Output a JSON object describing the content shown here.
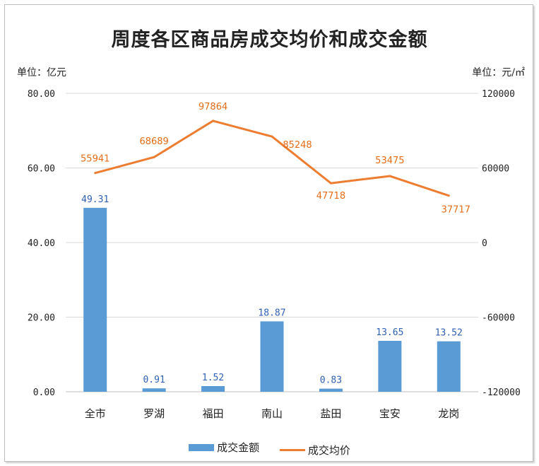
{
  "chart_data": {
    "type": "bar",
    "title": "周度各区商品房成交均价和成交金额",
    "ylabel_left": "单位：亿元",
    "ylabel_right": "单位：元/㎡",
    "categories": [
      "全市",
      "罗湖",
      "福田",
      "南山",
      "盐田",
      "宝安",
      "龙岗"
    ],
    "series": [
      {
        "name": "成交金额",
        "type": "bar",
        "axis": "left",
        "color": "#5b9bd5",
        "values": [
          49.31,
          0.91,
          1.52,
          18.87,
          0.83,
          13.65,
          13.52
        ],
        "labels": [
          "49.31",
          "0.91",
          "1.52",
          "18.87",
          "0.83",
          "13.65",
          "13.52"
        ]
      },
      {
        "name": "成交均价",
        "type": "line",
        "axis": "right",
        "color": "#ed7d31",
        "values": [
          55941,
          68689,
          97864,
          85248,
          47718,
          53475,
          37717
        ],
        "labels": [
          "55941",
          "68689",
          "97864",
          "85248",
          "47718",
          "53475",
          "37717"
        ]
      }
    ],
    "y_left": {
      "min": 0,
      "max": 80,
      "ticks": [
        "0.00",
        "20.00",
        "40.00",
        "60.00",
        "80.00"
      ]
    },
    "y_right": {
      "min": -120000,
      "max": 120000,
      "ticks": [
        "-120000",
        "-60000",
        "0",
        "60000",
        "120000"
      ]
    },
    "grid": true,
    "legend_position": "bottom"
  }
}
